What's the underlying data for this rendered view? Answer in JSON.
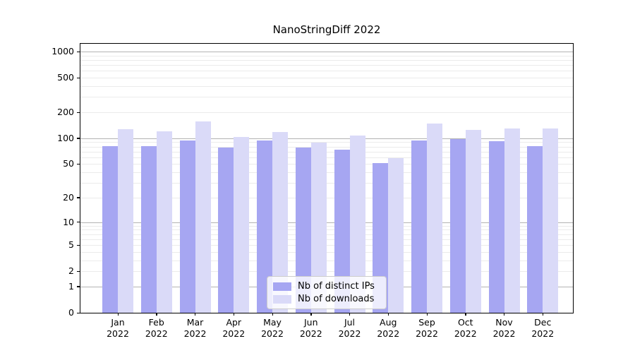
{
  "figure": {
    "title": "NanoStringDiff 2022"
  },
  "legend": {
    "items": [
      {
        "label": "Nb of distinct IPs",
        "color": "#a6a6f2"
      },
      {
        "label": "Nb of downloads",
        "color": "#dadaf8"
      }
    ]
  },
  "chart_data": {
    "type": "bar",
    "title": "NanoStringDiff 2022",
    "categories": [
      "Jan 2022",
      "Feb 2022",
      "Mar 2022",
      "Apr 2022",
      "May 2022",
      "Jun 2022",
      "Jul 2022",
      "Aug 2022",
      "Sep 2022",
      "Oct 2022",
      "Nov 2022",
      "Dec 2022"
    ],
    "series": [
      {
        "name": "Nb of distinct IPs",
        "color": "#a6a6f2",
        "values": [
          81,
          81,
          95,
          78,
          94,
          78,
          74,
          51,
          95,
          97,
          93,
          81
        ]
      },
      {
        "name": "Nb of downloads",
        "color": "#dadaf8",
        "values": [
          127,
          120,
          156,
          103,
          118,
          89,
          108,
          59,
          148,
          126,
          130,
          130
        ]
      }
    ],
    "xlabel": "",
    "ylabel": "",
    "yscale": "log1p",
    "ylim": [
      0,
      1230
    ],
    "yticks": [
      0,
      1,
      2,
      5,
      10,
      20,
      50,
      100,
      200,
      500,
      1000
    ],
    "grid": {
      "major_ticks": [
        1,
        10,
        100,
        1000
      ],
      "minor_ticks_rule": "2-9 per decade",
      "major_color": "#b3b3b3",
      "minor_color": "#ebebeb"
    },
    "legend_position": "lower center",
    "bar_grouping": "paired side-by-side per month"
  }
}
